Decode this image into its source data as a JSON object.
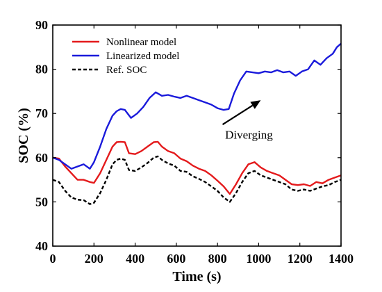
{
  "chart_data": {
    "type": "line",
    "xlabel": "Time (s)",
    "ylabel": "SOC (%)",
    "xlim": [
      0,
      1400
    ],
    "ylim": [
      40,
      90
    ],
    "xticks": [
      0,
      200,
      400,
      600,
      800,
      1000,
      1200,
      1400
    ],
    "yticks": [
      40,
      50,
      60,
      70,
      80,
      90
    ],
    "grid": false,
    "legend": "top-left",
    "annotations": [
      {
        "text": "Diverging",
        "arrow_from": [
          825,
          67.5
        ],
        "arrow_to": [
          1010,
          73
        ]
      }
    ],
    "series": [
      {
        "name": "Nonlinear model",
        "color": "#e41a1c",
        "style": "solid",
        "x": [
          0,
          30,
          60,
          90,
          120,
          150,
          180,
          200,
          230,
          260,
          290,
          310,
          330,
          350,
          370,
          400,
          430,
          460,
          490,
          510,
          530,
          560,
          590,
          620,
          650,
          680,
          710,
          740,
          770,
          800,
          830,
          860,
          890,
          920,
          950,
          980,
          1010,
          1040,
          1070,
          1100,
          1130,
          1160,
          1190,
          1220,
          1250,
          1280,
          1310,
          1340,
          1370,
          1400
        ],
        "y": [
          60,
          59.8,
          58,
          56.5,
          55,
          55,
          54.5,
          54.3,
          56.5,
          59.5,
          62.5,
          63.5,
          63.6,
          63.5,
          61,
          60.8,
          61.5,
          62.5,
          63.5,
          63.6,
          62.5,
          61.5,
          61,
          59.8,
          59.2,
          58.2,
          57.5,
          57,
          56,
          54.8,
          53.5,
          51.8,
          54,
          56.5,
          58.5,
          59,
          57.8,
          57,
          56.5,
          56,
          55,
          54,
          53.8,
          54,
          53.6,
          54.5,
          54.2,
          55,
          55.5,
          56
        ]
      },
      {
        "name": "Linearized model",
        "color": "#1a1adb",
        "style": "solid",
        "x": [
          0,
          30,
          60,
          90,
          120,
          150,
          180,
          200,
          230,
          260,
          290,
          310,
          330,
          350,
          380,
          410,
          440,
          470,
          500,
          530,
          560,
          590,
          620,
          650,
          680,
          710,
          740,
          770,
          800,
          830,
          855,
          880,
          910,
          940,
          970,
          1000,
          1030,
          1060,
          1090,
          1120,
          1150,
          1180,
          1210,
          1240,
          1270,
          1300,
          1330,
          1360,
          1380,
          1400
        ],
        "y": [
          60,
          59.5,
          58.5,
          57.5,
          58,
          58.5,
          57.5,
          59,
          62.5,
          66.5,
          69.5,
          70.5,
          71,
          70.8,
          69,
          70,
          71.5,
          73.5,
          74.8,
          74,
          74.2,
          73.8,
          73.5,
          74,
          73.5,
          73,
          72.5,
          72,
          71.2,
          70.8,
          71,
          74.5,
          77.5,
          79.5,
          79.3,
          79.1,
          79.5,
          79.3,
          79.8,
          79.3,
          79.5,
          78.5,
          79.5,
          80,
          82,
          81,
          82.5,
          83.5,
          85,
          85.8
        ]
      },
      {
        "name": "Ref. SOC",
        "color": "#000000",
        "style": "dashed",
        "x": [
          0,
          30,
          60,
          90,
          120,
          150,
          180,
          200,
          230,
          260,
          290,
          310,
          330,
          350,
          370,
          400,
          430,
          460,
          490,
          510,
          530,
          560,
          590,
          620,
          650,
          680,
          710,
          740,
          770,
          800,
          830,
          860,
          890,
          920,
          950,
          980,
          1010,
          1040,
          1070,
          1100,
          1130,
          1160,
          1190,
          1220,
          1250,
          1280,
          1310,
          1340,
          1370,
          1400
        ],
        "y": [
          55,
          54.5,
          52.5,
          51,
          50.5,
          50.4,
          49.5,
          49.8,
          52,
          55,
          58.5,
          59.5,
          59.8,
          59.5,
          57.2,
          57,
          57.8,
          58.8,
          60,
          60.3,
          59.5,
          58.7,
          58.2,
          57,
          56.8,
          55.8,
          55.2,
          54.5,
          53.5,
          52.5,
          51,
          50,
          52,
          54.5,
          56.5,
          57,
          56,
          55.5,
          55,
          54.5,
          54,
          52.8,
          52.5,
          52.8,
          52.5,
          53,
          53.5,
          53.8,
          54.5,
          55
        ]
      }
    ]
  }
}
